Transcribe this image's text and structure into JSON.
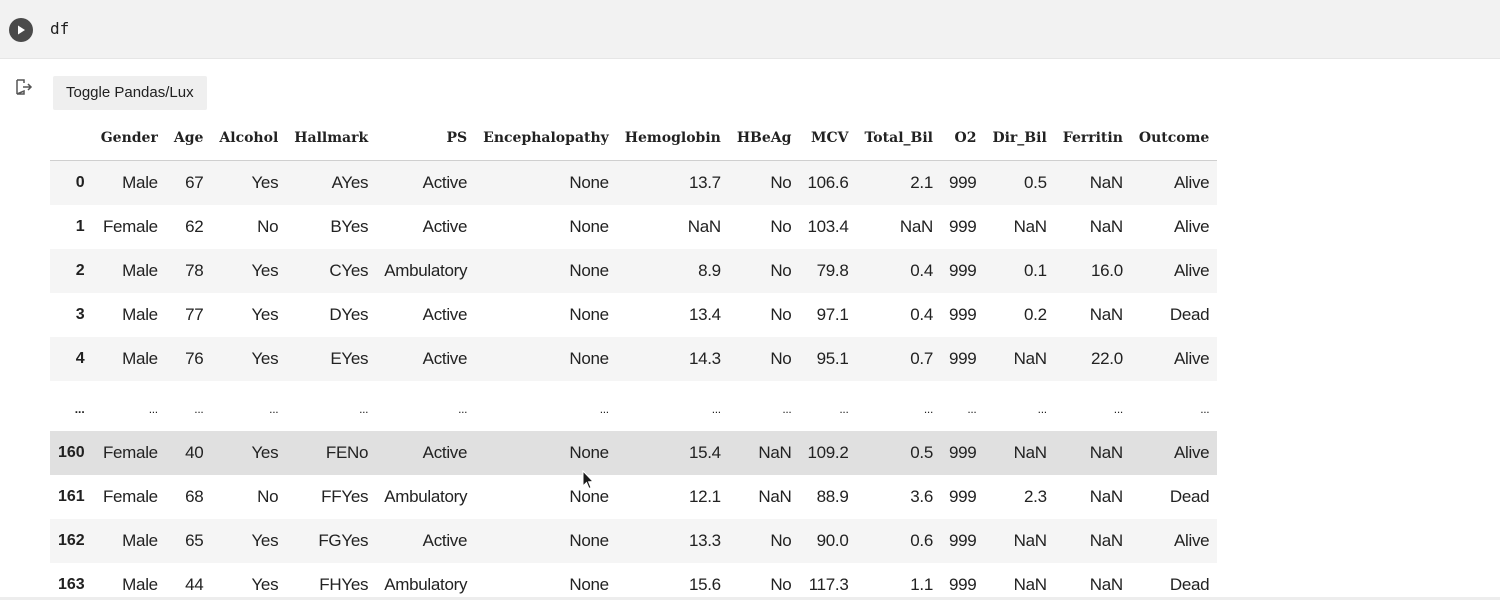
{
  "cell": {
    "code": "df"
  },
  "output": {
    "toggle_label": "Toggle Pandas/Lux"
  },
  "table": {
    "columns": [
      "Gender",
      "Age",
      "Alcohol",
      "Hallmark",
      "PS",
      "Encephalopathy",
      "Hemoglobin",
      "HBeAg",
      "MCV",
      "Total_Bil",
      "O2",
      "Dir_Bil",
      "Ferritin",
      "Outcome"
    ],
    "rows": [
      {
        "index": "0",
        "cells": [
          "Male",
          "67",
          "Yes",
          "AYes",
          "Active",
          "None",
          "13.7",
          "No",
          "106.6",
          "2.1",
          "999",
          "0.5",
          "NaN",
          "Alive"
        ]
      },
      {
        "index": "1",
        "cells": [
          "Female",
          "62",
          "No",
          "BYes",
          "Active",
          "None",
          "NaN",
          "No",
          "103.4",
          "NaN",
          "999",
          "NaN",
          "NaN",
          "Alive"
        ]
      },
      {
        "index": "2",
        "cells": [
          "Male",
          "78",
          "Yes",
          "CYes",
          "Ambulatory",
          "None",
          "8.9",
          "No",
          "79.8",
          "0.4",
          "999",
          "0.1",
          "16.0",
          "Alive"
        ]
      },
      {
        "index": "3",
        "cells": [
          "Male",
          "77",
          "Yes",
          "DYes",
          "Active",
          "None",
          "13.4",
          "No",
          "97.1",
          "0.4",
          "999",
          "0.2",
          "NaN",
          "Dead"
        ]
      },
      {
        "index": "4",
        "cells": [
          "Male",
          "76",
          "Yes",
          "EYes",
          "Active",
          "None",
          "14.3",
          "No",
          "95.1",
          "0.7",
          "999",
          "NaN",
          "22.0",
          "Alive"
        ]
      },
      {
        "index": "...",
        "cells": [
          "...",
          "...",
          "...",
          "...",
          "...",
          "...",
          "...",
          "...",
          "...",
          "...",
          "...",
          "...",
          "...",
          "..."
        ]
      },
      {
        "index": "160",
        "cells": [
          "Female",
          "40",
          "Yes",
          "FENo",
          "Active",
          "None",
          "15.4",
          "NaN",
          "109.2",
          "0.5",
          "999",
          "NaN",
          "NaN",
          "Alive"
        ]
      },
      {
        "index": "161",
        "cells": [
          "Female",
          "68",
          "No",
          "FFYes",
          "Ambulatory",
          "None",
          "12.1",
          "NaN",
          "88.9",
          "3.6",
          "999",
          "2.3",
          "NaN",
          "Dead"
        ]
      },
      {
        "index": "162",
        "cells": [
          "Male",
          "65",
          "Yes",
          "FGYes",
          "Active",
          "None",
          "13.3",
          "No",
          "90.0",
          "0.6",
          "999",
          "NaN",
          "NaN",
          "Alive"
        ]
      },
      {
        "index": "163",
        "cells": [
          "Male",
          "44",
          "Yes",
          "FHYes",
          "Ambulatory",
          "None",
          "15.6",
          "No",
          "117.3",
          "1.1",
          "999",
          "NaN",
          "NaN",
          "Dead"
        ]
      }
    ]
  }
}
